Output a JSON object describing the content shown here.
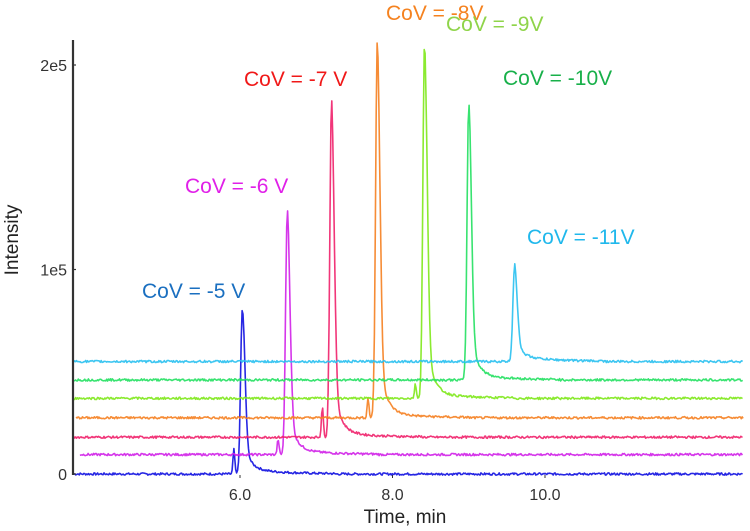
{
  "chart_data": {
    "type": "line",
    "title": "",
    "xlabel": "Time, min",
    "ylabel": "Intensity",
    "xlim": [
      3.82,
      12.6
    ],
    "ylim": [
      0,
      220000.0
    ],
    "x_ticks": [
      6.0,
      8.0,
      10.0
    ],
    "x_tick_labels": [
      "6.0",
      "8.0",
      "10.0"
    ],
    "y_ticks": [
      0,
      100000,
      200000
    ],
    "y_tick_labels": [
      "0",
      "1e5",
      "2e5"
    ],
    "grid": false,
    "legend": "none (inline annotations)",
    "series": [
      {
        "name": "CoV = -5 V",
        "color": "#1010e0",
        "label_color": "#1a6fc0",
        "baseline": 0,
        "peak_time": 6.03,
        "peak_height": 80000,
        "shoulder_time": 5.92,
        "shoulder_height": 12000,
        "label": "CoV = -5 V"
      },
      {
        "name": "CoV = -6 V",
        "color": "#d020e8",
        "label_color": "#e020e8",
        "baseline": 9500,
        "peak_time": 6.62,
        "peak_height": 128000,
        "shoulder_time": 6.5,
        "shoulder_height": 17000,
        "label": "CoV = -6 V"
      },
      {
        "name": "CoV = -7 V",
        "color": "#f0206a",
        "label_color": "#f01818",
        "baseline": 18000,
        "peak_time": 7.2,
        "peak_height": 182000,
        "shoulder_time": 7.08,
        "shoulder_height": 33000,
        "label": "CoV = -7 V"
      },
      {
        "name": "CoV = -8V",
        "color": "#f57f20",
        "label_color": "#f5821f",
        "baseline": 27500,
        "peak_time": 7.8,
        "peak_height": 211000,
        "shoulder_time": 7.68,
        "shoulder_height": 37000,
        "label": "CoV = -8V"
      },
      {
        "name": "CoV = -9V",
        "color": "#7ee81a",
        "label_color": "#8fd44a",
        "baseline": 37000,
        "peak_time": 8.42,
        "peak_height": 210000,
        "shoulder_time": 8.3,
        "shoulder_height": 44000,
        "label": "CoV = -9V"
      },
      {
        "name": "CoV = -10V",
        "color": "#22e060",
        "label_color": "#18b04a",
        "baseline": 46000,
        "peak_time": 9.0,
        "peak_height": 180000,
        "shoulder_time": null,
        "shoulder_height": null,
        "label": "CoV = -10V"
      },
      {
        "name": "CoV = -11V",
        "color": "#28c0f0",
        "label_color": "#20b8ec",
        "baseline": 55000,
        "peak_time": 9.6,
        "peak_height": 101000,
        "shoulder_time": null,
        "shoulder_height": null,
        "label": "CoV = -11V"
      }
    ],
    "series_start_times": [
      3.82,
      3.9,
      3.82,
      3.85,
      3.82,
      3.82,
      3.82
    ],
    "x_end": 12.6
  }
}
